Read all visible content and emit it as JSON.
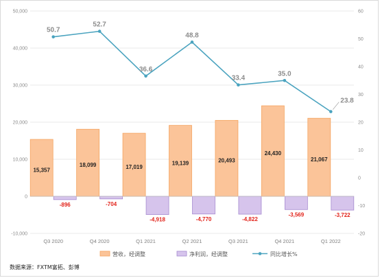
{
  "source_note": "数据来源：FXTM富拓、彭博",
  "colors": {
    "revenue_fill": "#fbc499",
    "revenue_stroke": "#f4a460",
    "netprofit_fill": "#d6c4ec",
    "netprofit_stroke": "#a68bd0",
    "yoy_line": "#4aa3bf",
    "netprofit_label": "#e2231a",
    "grid": "#e3e3e3"
  },
  "chart_data": {
    "type": "bar",
    "categories": [
      "Q3 2020",
      "Q4 2020",
      "Q1 2021",
      "Q2 2021",
      "Q3 2021",
      "Q4 2021",
      "Q1 2022"
    ],
    "series": [
      {
        "name": "营收，经调整",
        "kind": "bar",
        "axis": "left",
        "values": [
          15357,
          18099,
          17019,
          19139,
          20493,
          24430,
          21067
        ],
        "labels": [
          "15,357",
          "18,099",
          "17,019",
          "19,139",
          "20,493",
          "24,430",
          "21,067"
        ]
      },
      {
        "name": "净利润，经调整",
        "kind": "bar",
        "axis": "left",
        "values": [
          -896,
          -704,
          -4918,
          -4770,
          -4822,
          -3569,
          -3722
        ],
        "labels": [
          "-896",
          "-704",
          "-4,918",
          "-4,770",
          "-4,822",
          "-3,569",
          "-3,722"
        ]
      },
      {
        "name": "同比增长%",
        "kind": "line",
        "axis": "right",
        "values": [
          50.7,
          52.7,
          36.6,
          48.8,
          33.4,
          35.0,
          23.8
        ],
        "labels": [
          "50.7",
          "52.7",
          "36.6",
          "48.8",
          "33.4",
          "35.0",
          "23.8"
        ]
      }
    ],
    "y_left": {
      "min": -10000,
      "max": 50000,
      "step": 10000,
      "tick_labels": [
        "-10,000",
        "0",
        "10,000",
        "20,000",
        "30,000",
        "40,000",
        "50,000"
      ]
    },
    "y_right": {
      "min": -20,
      "max": 60,
      "step": 10,
      "tick_labels": [
        "-20",
        "-10",
        "0",
        "10",
        "20",
        "30",
        "40",
        "50",
        "60"
      ]
    },
    "grid": true,
    "legend_position": "bottom"
  }
}
